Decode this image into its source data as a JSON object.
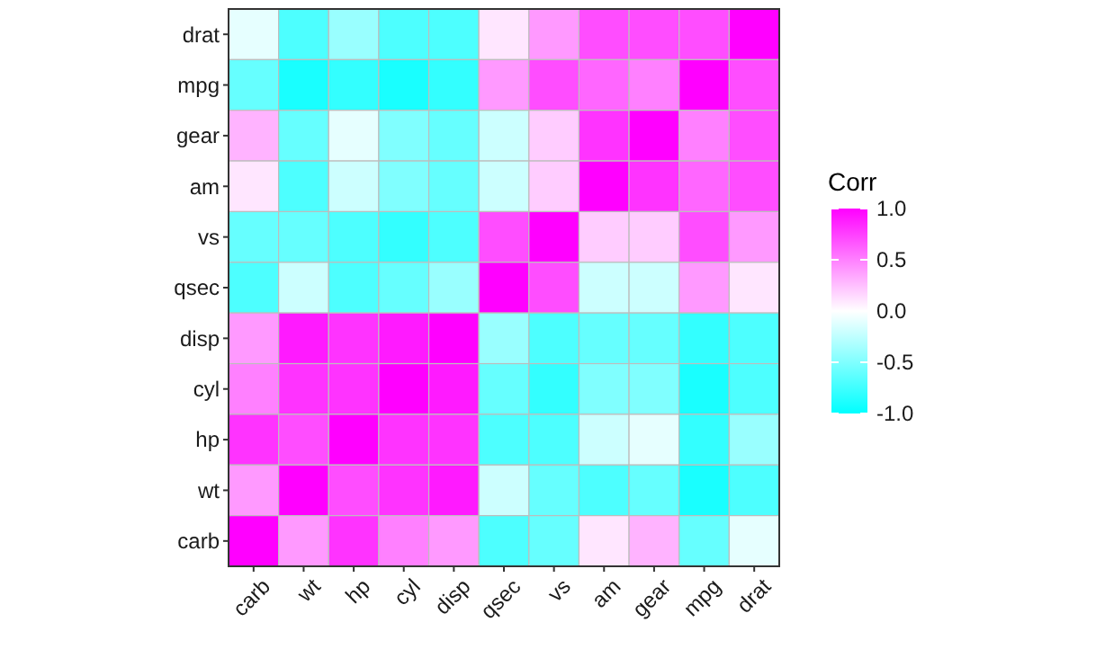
{
  "chart_data": {
    "type": "heatmap",
    "legend_title": "Corr",
    "categories": [
      "carb",
      "wt",
      "hp",
      "cyl",
      "disp",
      "qsec",
      "vs",
      "am",
      "gear",
      "mpg",
      "drat"
    ],
    "y_categories": [
      "drat",
      "mpg",
      "gear",
      "am",
      "vs",
      "qsec",
      "disp",
      "cyl",
      "hp",
      "wt",
      "carb"
    ],
    "cells": [
      [
        -0.1,
        -0.7,
        -0.4,
        -0.7,
        -0.7,
        0.1,
        0.4,
        0.7,
        0.7,
        0.7,
        1
      ],
      [
        -0.6,
        -0.9,
        -0.8,
        -0.9,
        -0.8,
        0.4,
        0.7,
        0.6,
        0.5,
        1,
        0.7
      ],
      [
        0.3,
        -0.6,
        -0.1,
        -0.5,
        -0.6,
        -0.2,
        0.2,
        0.8,
        1,
        0.5,
        0.7
      ],
      [
        0.1,
        -0.7,
        -0.2,
        -0.5,
        -0.6,
        -0.2,
        0.2,
        1,
        0.8,
        0.6,
        0.7
      ],
      [
        -0.6,
        -0.6,
        -0.7,
        -0.8,
        -0.7,
        0.7,
        1,
        0.2,
        0.2,
        0.7,
        0.4
      ],
      [
        -0.7,
        -0.2,
        -0.7,
        -0.6,
        -0.4,
        1,
        0.7,
        -0.2,
        -0.2,
        0.4,
        0.1
      ],
      [
        0.4,
        0.9,
        0.8,
        0.9,
        1,
        -0.4,
        -0.7,
        -0.6,
        -0.6,
        -0.8,
        -0.7
      ],
      [
        0.5,
        0.8,
        0.8,
        1,
        0.9,
        -0.6,
        -0.8,
        -0.5,
        -0.5,
        -0.9,
        -0.7
      ],
      [
        0.8,
        0.7,
        1,
        0.8,
        0.8,
        -0.7,
        -0.7,
        -0.2,
        -0.1,
        -0.8,
        -0.4
      ],
      [
        0.4,
        1,
        0.7,
        0.8,
        0.9,
        -0.2,
        -0.6,
        -0.7,
        -0.6,
        -0.9,
        -0.7
      ],
      [
        1,
        0.4,
        0.8,
        0.5,
        0.4,
        -0.7,
        -0.6,
        0.1,
        0.3,
        -0.6,
        -0.1
      ]
    ],
    "clim": [
      -1,
      1
    ],
    "cticks": [
      {
        "value": -1,
        "label": "-1.0"
      },
      {
        "value": -0.5,
        "label": "-0.5"
      },
      {
        "value": 0,
        "label": "0.0"
      },
      {
        "value": 0.5,
        "label": "0.5"
      },
      {
        "value": 1,
        "label": "1.0"
      }
    ]
  }
}
